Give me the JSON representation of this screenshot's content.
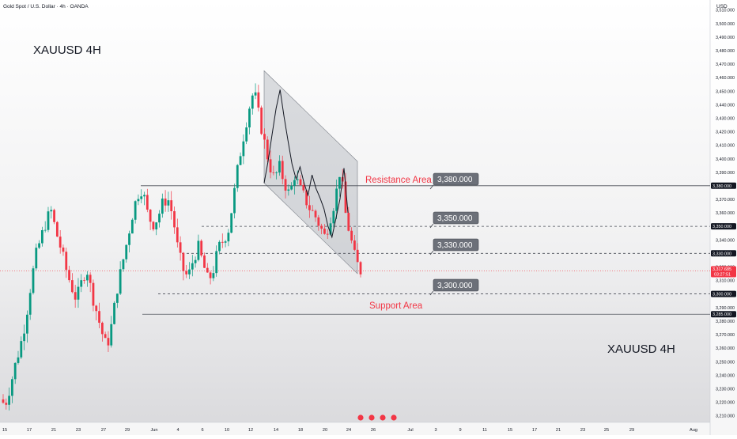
{
  "header": {
    "symbol_line": "Gold Spot / U.S. Dollar · 4h · OANDA",
    "currency": "USD"
  },
  "annotations": {
    "title_top": "XAUUSD 4H",
    "title_bottom": "XAUUSD 4H",
    "resistance_label": "Resistance Area",
    "support_label": "Support Area",
    "level_labels": [
      "3,380.000",
      "3,350.000",
      "3,330.000",
      "3,300.000"
    ]
  },
  "chart_data": {
    "type": "candlestick",
    "symbol": "XAUUSD",
    "timeframe": "4h",
    "ylim": [
      3205,
      3515
    ],
    "y_ticks": [
      3210,
      3220,
      3230,
      3240,
      3250,
      3260,
      3270,
      3280,
      3290,
      3300,
      3310,
      3320,
      3330,
      3340,
      3350,
      3360,
      3370,
      3380,
      3390,
      3400,
      3410,
      3420,
      3430,
      3440,
      3450,
      3460,
      3470,
      3480,
      3490,
      3500,
      3510
    ],
    "y_tick_labels": [
      "3,210.000",
      "3,220.000",
      "3,230.000",
      "3,240.000",
      "3,250.000",
      "3,260.000",
      "3,270.000",
      "3,280.000",
      "3,290.000",
      "3,300.000",
      "3,310.000",
      "3,320.000",
      "3,330.000",
      "3,340.000",
      "3,350.000",
      "3,360.000",
      "3,370.000",
      "3,380.000",
      "3,390.000",
      "3,400.000",
      "3,410.000",
      "3,420.000",
      "3,430.000",
      "3,440.000",
      "3,450.000",
      "3,460.000",
      "3,470.000",
      "3,480.000",
      "3,490.000",
      "3,500.000",
      "3,510.000"
    ],
    "x_tick_labels": [
      "15",
      "17",
      "21",
      "23",
      "27",
      "29",
      "Jun",
      "4",
      "6",
      "10",
      "12",
      "14",
      "18",
      "20",
      "24",
      "26",
      "Jul",
      "3",
      "9",
      "11",
      "15",
      "17",
      "21",
      "23",
      "25",
      "29",
      "Aug"
    ],
    "price_badges": [
      {
        "value": 3380,
        "label": "3,380.000"
      },
      {
        "value": 3350,
        "label": "3,350.000"
      },
      {
        "value": 3330,
        "label": "3,330.000"
      },
      {
        "value": 3300,
        "label": "3,300.000"
      },
      {
        "value": 3285,
        "label": "3,285.000"
      }
    ],
    "current_price": {
      "value": 3317,
      "label": "3,317.685",
      "countdown": "03:27:51"
    },
    "horizontal_levels": [
      3380,
      3350,
      3330,
      3300,
      3285
    ],
    "channel": {
      "upper_start": 3465,
      "upper_end": 3398,
      "lower_start": 3382,
      "lower_end": 3315
    },
    "support_zone": [
      3300,
      3285
    ],
    "resistance_zone": [
      3380,
      3395
    ],
    "colors": {
      "up": "#089981",
      "down": "#f23645",
      "line": "#131722",
      "current": "#f23645"
    },
    "path_closes": [
      3222,
      3218,
      3232,
      3248,
      3262,
      3280,
      3306,
      3328,
      3341,
      3353,
      3362,
      3346,
      3333,
      3318,
      3306,
      3296,
      3308,
      3320,
      3301,
      3287,
      3272,
      3260,
      3278,
      3303,
      3321,
      3339,
      3358,
      3373,
      3378,
      3360,
      3351,
      3356,
      3367,
      3371,
      3358,
      3333,
      3318,
      3312,
      3325,
      3335,
      3322,
      3309,
      3318,
      3334,
      3340,
      3348,
      3372,
      3398,
      3418,
      3437,
      3451,
      3431,
      3413,
      3396,
      3385,
      3394,
      3382,
      3373,
      3388,
      3378,
      3371,
      3363,
      3358,
      3350,
      3342,
      3356,
      3370,
      3393,
      3360,
      3342,
      3325,
      3317
    ],
    "path_closes_note": ""
  }
}
